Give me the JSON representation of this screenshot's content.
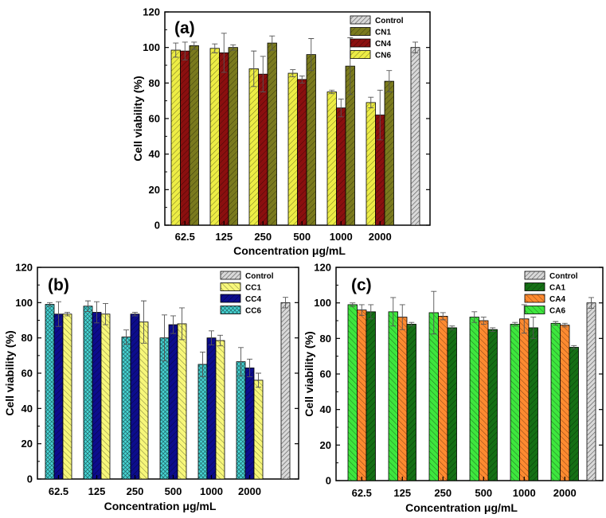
{
  "chart_data": [
    {
      "type": "bar",
      "panel_label": "(a)",
      "xlabel": "Concentration μg/mL",
      "ylabel": "Cell viability (%)",
      "ylim": [
        0,
        120
      ],
      "yticks": [
        0,
        20,
        40,
        60,
        80,
        100,
        120
      ],
      "categories": [
        "62.5",
        "125",
        "250",
        "500",
        "1000",
        "2000"
      ],
      "legend_position": "top-right",
      "control": {
        "name": "Control",
        "value": 100,
        "error": 3,
        "color": "#c8c8c8"
      },
      "series": [
        {
          "name": "CN6",
          "color": "#eded45",
          "values": [
            98.5,
            99.5,
            88,
            85.5,
            75,
            69
          ],
          "errors": [
            4,
            2.5,
            10,
            2,
            1,
            3
          ]
        },
        {
          "name": "CN4",
          "color": "#8b0f0f",
          "values": [
            98,
            97,
            85,
            82,
            66,
            62
          ],
          "errors": [
            5,
            11,
            10,
            2,
            5,
            14
          ]
        },
        {
          "name": "CN1",
          "color": "#7a7a1e",
          "values": [
            101,
            100,
            102.5,
            96,
            89.5,
            81
          ],
          "errors": [
            2,
            1.5,
            4,
            9,
            16,
            6
          ]
        }
      ],
      "legend_order": [
        "Control",
        "CN1",
        "CN4",
        "CN6"
      ]
    },
    {
      "type": "bar",
      "panel_label": "(b)",
      "xlabel": "Concentration μg/mL",
      "ylabel": "Cell viability (%)",
      "ylim": [
        0,
        120
      ],
      "yticks": [
        0,
        20,
        40,
        60,
        80,
        100,
        120
      ],
      "categories": [
        "62.5",
        "125",
        "250",
        "500",
        "1000",
        "2000"
      ],
      "legend_position": "top-right",
      "control": {
        "name": "Control",
        "value": 100,
        "error": 3,
        "color": "#c8c8c8"
      },
      "series": [
        {
          "name": "CC6",
          "color": "#46d4d4",
          "values": [
            99,
            98,
            80.5,
            80,
            65,
            66.5
          ],
          "errors": [
            1,
            3,
            4,
            13,
            7,
            8
          ]
        },
        {
          "name": "CC4",
          "color": "#0c0c8c",
          "values": [
            93.5,
            94.5,
            93.5,
            87.5,
            80,
            63
          ],
          "errors": [
            7,
            6,
            1,
            5,
            4,
            5
          ]
        },
        {
          "name": "CC1",
          "color": "#f7f77a",
          "values": [
            93.5,
            93.5,
            89,
            88,
            78.5,
            56
          ],
          "errors": [
            1,
            6,
            12,
            9,
            3,
            4
          ]
        }
      ],
      "legend_order": [
        "Control",
        "CC1",
        "CC4",
        "CC6"
      ]
    },
    {
      "type": "bar",
      "panel_label": "(c)",
      "xlabel": "Concentration μg/mL",
      "ylabel": "Cell viability (%)",
      "ylim": [
        0,
        120
      ],
      "yticks": [
        0,
        20,
        40,
        60,
        80,
        100,
        120
      ],
      "categories": [
        "62.5",
        "125",
        "250",
        "500",
        "1000",
        "2000"
      ],
      "legend_position": "top-right",
      "control": {
        "name": "Control",
        "value": 100,
        "error": 3,
        "color": "#c8c8c8"
      },
      "series": [
        {
          "name": "CA6",
          "color": "#3ee63e",
          "values": [
            99,
            95,
            94.5,
            92,
            88,
            88.5
          ],
          "errors": [
            1,
            8,
            12,
            3,
            1,
            1
          ]
        },
        {
          "name": "CA4",
          "color": "#ff8a30",
          "values": [
            96,
            92,
            92.5,
            90,
            91,
            87.5
          ],
          "errors": [
            3,
            7,
            2,
            2,
            8,
            1
          ]
        },
        {
          "name": "CA1",
          "color": "#157015",
          "values": [
            95,
            88,
            86,
            85,
            86,
            75
          ],
          "errors": [
            4,
            1,
            1,
            1,
            6,
            1
          ]
        }
      ],
      "legend_order": [
        "Control",
        "CA1",
        "CA4",
        "CA6"
      ]
    }
  ]
}
